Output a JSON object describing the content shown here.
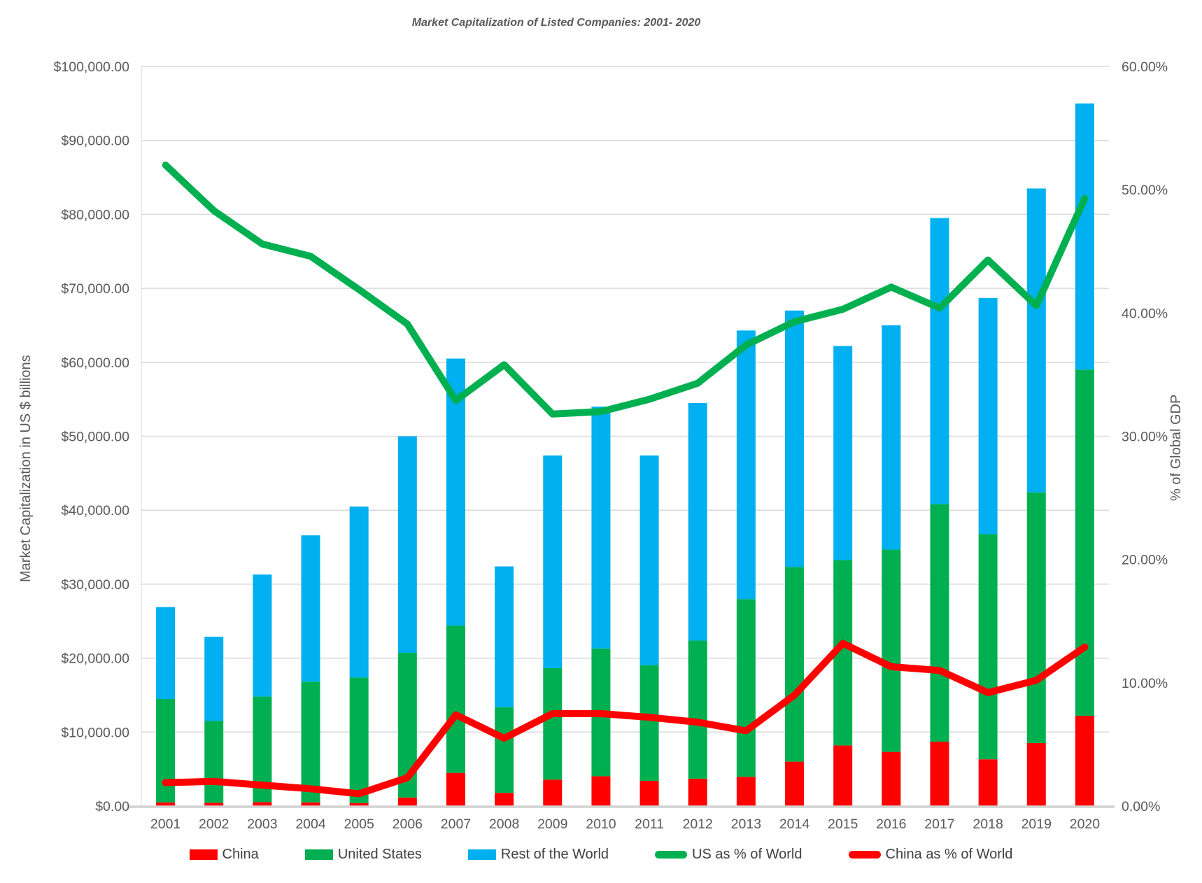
{
  "title": "Market Capitalization of Listed Companies: 2001- 2020",
  "left_axis": {
    "title": "Market Capitalization in US $ billions",
    "tick_labels_top_down": [
      "$100,000.00",
      "$90,000.00",
      "$80,000.00",
      "$70,000.00",
      "$60,000.00",
      "$50,000.00",
      "$40,000.00",
      "$30,000.00",
      "$20,000.00",
      "$10,000.00",
      "$0.00"
    ]
  },
  "right_axis": {
    "title": "% of Global GDP",
    "tick_labels_top_down": [
      "60.00%",
      "50.00%",
      "40.00%",
      "30.00%",
      "20.00%",
      "10.00%",
      "0.00%"
    ]
  },
  "colors": {
    "china_bar": "#FF0000",
    "us_bar": "#00B050",
    "row_bar": "#00B0F0",
    "us_line": "#00B050",
    "china_line": "#FF0000",
    "gridline": "#D9D9D9",
    "axis_line": "#D2D2D2",
    "text": "#595959"
  },
  "legend": {
    "items": [
      {
        "label": "China",
        "swatch": "bar",
        "color": "#FF0000"
      },
      {
        "label": "United States",
        "swatch": "bar",
        "color": "#00B050"
      },
      {
        "label": "Rest of the World",
        "swatch": "bar",
        "color": "#00B0F0"
      },
      {
        "label": "US as % of World",
        "swatch": "line",
        "color": "#00B050"
      },
      {
        "label": "China as % of World",
        "swatch": "line",
        "color": "#FF0000"
      }
    ]
  },
  "chart_data": {
    "type": "combo-stacked-bar-line",
    "categories": [
      "2001",
      "2002",
      "2003",
      "2004",
      "2005",
      "2006",
      "2007",
      "2008",
      "2009",
      "2010",
      "2011",
      "2012",
      "2013",
      "2014",
      "2015",
      "2016",
      "2017",
      "2018",
      "2019",
      "2020"
    ],
    "bar_series": [
      {
        "name": "China",
        "color": "#FF0000",
        "values": [
          500,
          450,
          530,
          500,
          400,
          1150,
          4480,
          1780,
          3570,
          4030,
          3410,
          3700,
          3950,
          6000,
          8190,
          7320,
          8710,
          6320,
          8520,
          12210
        ]
      },
      {
        "name": "United States",
        "color": "#00B050",
        "values": [
          13980,
          11050,
          14270,
          16320,
          16970,
          19570,
          19920,
          11590,
          15080,
          17280,
          15640,
          18670,
          24030,
          26330,
          25070,
          27350,
          32120,
          30440,
          33890,
          46800
        ]
      },
      {
        "name": "Rest of the World",
        "color": "#00B0F0",
        "values": [
          12420,
          11400,
          16500,
          19780,
          23130,
          29280,
          36100,
          19030,
          28750,
          32690,
          28350,
          32130,
          36320,
          34670,
          28940,
          30330,
          38670,
          31940,
          41090,
          35990
        ]
      }
    ],
    "line_series": [
      {
        "name": "US as % of World",
        "color": "#00B050",
        "axis": "right",
        "values": [
          52.0,
          48.3,
          45.6,
          44.6,
          41.9,
          39.1,
          32.9,
          35.8,
          31.8,
          32.0,
          33.0,
          34.3,
          37.4,
          39.3,
          40.3,
          42.1,
          40.4,
          44.3,
          40.6,
          49.3
        ]
      },
      {
        "name": "China as % of World",
        "color": "#FF0000",
        "axis": "right",
        "values": [
          1.9,
          2.0,
          1.7,
          1.4,
          1.0,
          2.3,
          7.4,
          5.5,
          7.5,
          7.5,
          7.2,
          6.8,
          6.1,
          9.0,
          13.2,
          11.3,
          11.0,
          9.2,
          10.2,
          12.9
        ]
      }
    ],
    "left_ylim": [
      0,
      100000
    ],
    "left_step": 10000,
    "right_ylim": [
      0,
      60
    ],
    "right_step": 10,
    "grid": true,
    "legend_position": "bottom"
  }
}
